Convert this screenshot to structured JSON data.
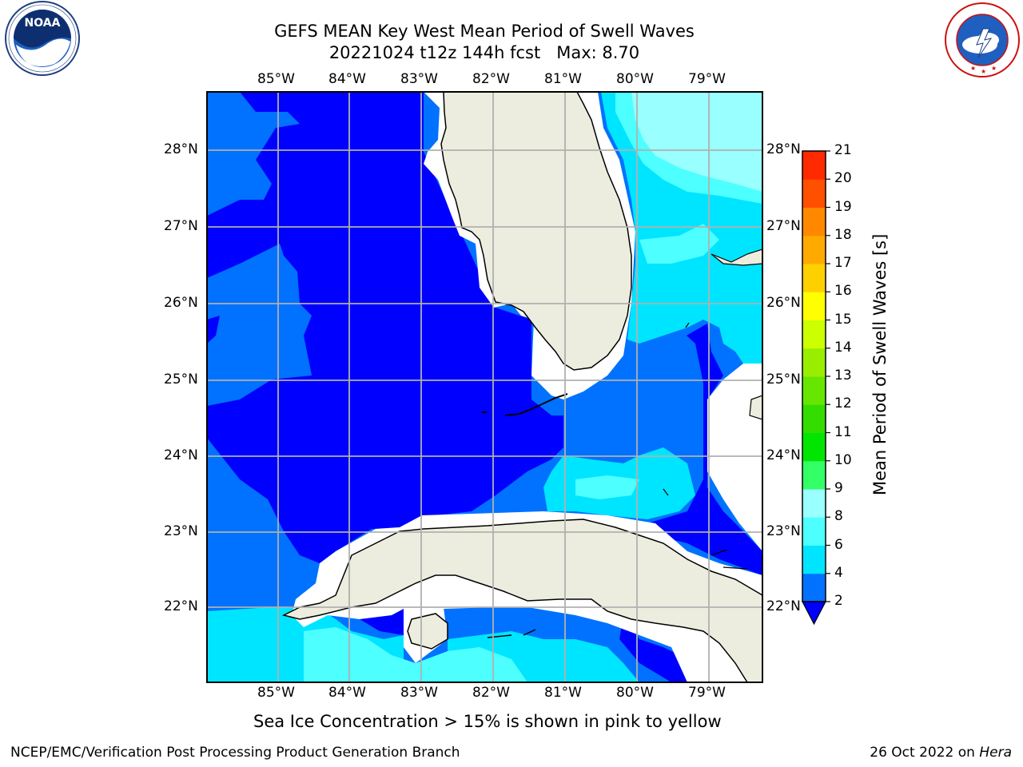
{
  "header": {
    "title_line1": "GEFS MEAN Key West Mean Period of Swell Waves",
    "title_line2": "20221024 t12z 144h fcst   Max: 8.70"
  },
  "logos": {
    "left": "NOAA",
    "left_ring_text": "NATIONAL OCEANIC AND ATMOSPHERIC ADMINISTRATION · U.S. DEPARTMENT OF COMMERCE",
    "right_ring_text": "NATIONAL WEATHER SERVICE"
  },
  "map": {
    "lon_labels": [
      "85°W",
      "84°W",
      "83°W",
      "82°W",
      "81°W",
      "80°W",
      "79°W"
    ],
    "lat_labels": [
      "28°N",
      "27°N",
      "26°N",
      "25°N",
      "24°N",
      "23°N",
      "22°N"
    ],
    "field": "Mean Period of Swell Waves",
    "land_color": "#ecedde",
    "masked_color": "#ffffff",
    "grid_color": "#b0b0b0"
  },
  "colorbar": {
    "label": "Mean Period of Swell Waves [s]",
    "levels": [
      "2",
      "4",
      "6",
      "8",
      "9",
      "10",
      "11",
      "12",
      "13",
      "14",
      "15",
      "16",
      "17",
      "18",
      "19",
      "20",
      "21"
    ],
    "colors": [
      "#0000ff",
      "#0072ff",
      "#00e5ff",
      "#4dffff",
      "#99ffff",
      "#33ff66",
      "#00e600",
      "#33dd00",
      "#66e600",
      "#99ee00",
      "#ccff00",
      "#ffff00",
      "#ffd000",
      "#ffaa00",
      "#ff8800",
      "#ff5000",
      "#ff2a00",
      "#ff0000"
    ]
  },
  "caption": "Sea Ice Concentration > 15% is shown in pink to yellow",
  "footer": {
    "left": "NCEP/EMC/Verification Post Processing Product Generation Branch",
    "right_date": "26 Oct 2022 on ",
    "right_machine": "Hera"
  }
}
